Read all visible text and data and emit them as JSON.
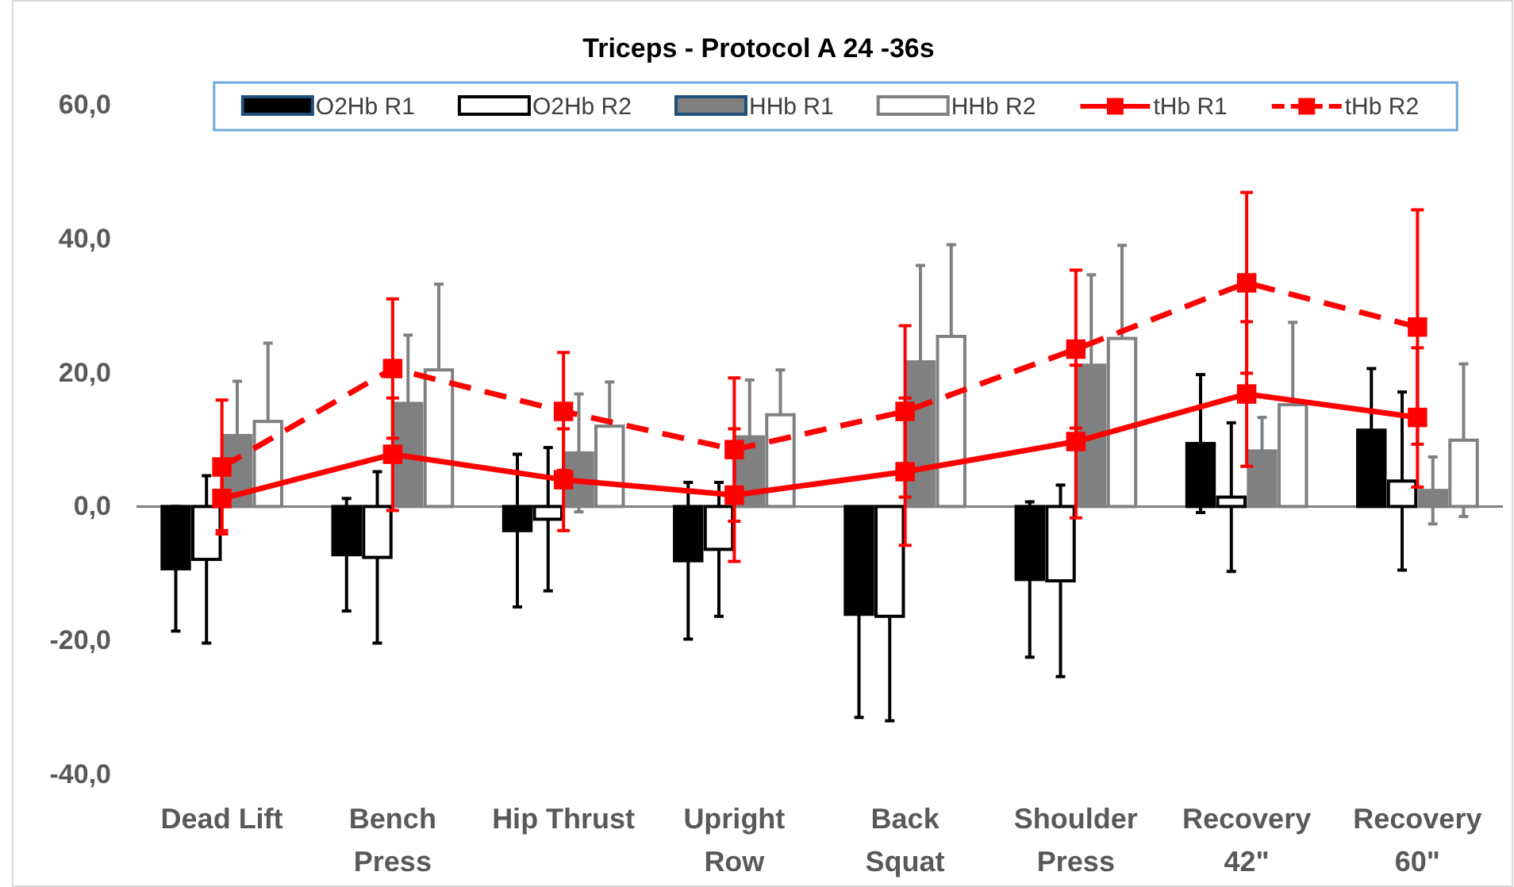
{
  "chart_data": {
    "type": "bar",
    "title": "Triceps - Protocol A 24 -36s",
    "categories": [
      "Dead Lift",
      "Bench Press",
      "Hip Thrust",
      "Upright Row",
      "Back Squat",
      "Shoulder Press",
      "Recovery 42\"",
      "Recovery 60\""
    ],
    "series": [
      {
        "name": "O2Hb R1",
        "color": "#000000",
        "values": [
          -9.3,
          -7.2,
          -3.6,
          -8.1,
          -16.1,
          -10.9,
          9.4,
          11.4
        ],
        "errors": [
          9.3,
          8.4,
          11.4,
          11.7,
          15.4,
          11.6,
          10.3,
          9.2
        ]
      },
      {
        "name": "O2Hb R2",
        "color": "#ffffff",
        "values": [
          -7.9,
          -7.6,
          -1.9,
          -6.4,
          -16.4,
          -11.1,
          1.4,
          3.8
        ],
        "errors": [
          12.5,
          12.8,
          10.7,
          10,
          15.6,
          14.3,
          11.1,
          13.3
        ]
      },
      {
        "name": "HHb R1",
        "color": "#808080",
        "values": [
          10.6,
          15.4,
          8,
          10.4,
          21.6,
          21.1,
          8.3,
          2.4
        ],
        "errors": [
          8.1,
          10.2,
          8.8,
          8.5,
          14.4,
          13.5,
          5,
          5
        ]
      },
      {
        "name": "HHb R2",
        "color": "#ffffff",
        "values": [
          12.7,
          20.4,
          12,
          13.7,
          25.4,
          25.1,
          15.2,
          9.9
        ],
        "errors": [
          11.7,
          12.8,
          6.6,
          6.7,
          13.7,
          13.9,
          12.3,
          11.4
        ]
      },
      {
        "name": "tHb R1",
        "type": "line",
        "color": "#ff0000",
        "line_style": "solid",
        "values": [
          1.2,
          7.8,
          4,
          1.7,
          5.2,
          9.7,
          16.8,
          13.3
        ],
        "errors": [
          4.8,
          8.4,
          7.6,
          9.9,
          11,
          11.4,
          10.8,
          10.4
        ]
      },
      {
        "name": "tHb R2",
        "type": "line",
        "color": "#ff0000",
        "line_style": "dashed",
        "values": [
          5.9,
          20.6,
          14.2,
          8.5,
          14.2,
          23.5,
          33.4,
          26.8
        ],
        "errors": [
          10,
          10.4,
          8.8,
          10.7,
          12.8,
          11.8,
          13.5,
          17.5
        ]
      }
    ],
    "ylim": [
      -40,
      60
    ],
    "yticks": [
      {
        "value": -40,
        "label": "-40,0"
      },
      {
        "value": -20,
        "label": "-20,0"
      },
      {
        "value": 0,
        "label": "0,0"
      },
      {
        "value": 20,
        "label": "20,0"
      },
      {
        "value": 40,
        "label": "40,0"
      },
      {
        "value": 60,
        "label": "60,0"
      }
    ],
    "legend": "top",
    "marker": "square"
  }
}
